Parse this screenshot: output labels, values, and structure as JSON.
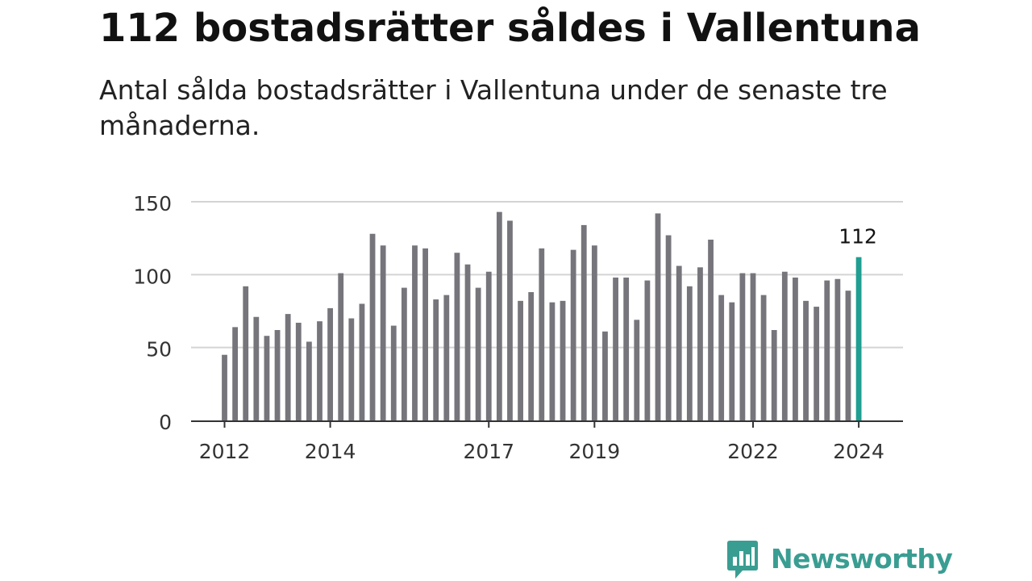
{
  "header": {
    "title": "112 bostadsrätter såldes i Vallentuna",
    "subtitle": "Antal sålda bostadsrätter i Vallentuna under de senaste tre månaderna."
  },
  "chart_data": {
    "type": "bar",
    "title": "112 bostadsrätter såldes i Vallentuna",
    "subtitle": "Antal sålda bostadsrätter i Vallentuna under de senaste tre månaderna.",
    "xlabel": "",
    "ylabel": "",
    "ylim": [
      0,
      150
    ],
    "yticks": [
      0,
      50,
      100,
      150
    ],
    "xtick_labels": [
      "2012",
      "2014",
      "2017",
      "2019",
      "2022",
      "2024"
    ],
    "xtick_positions": [
      0,
      10,
      25,
      35,
      50,
      60
    ],
    "grid": true,
    "bar_color": "#76757b",
    "highlight_color": "#1f9e91",
    "highlight_index": 60,
    "highlight_label": "112",
    "values": [
      45,
      64,
      92,
      71,
      58,
      62,
      73,
      67,
      54,
      68,
      77,
      101,
      70,
      80,
      128,
      120,
      65,
      91,
      120,
      118,
      83,
      86,
      115,
      107,
      91,
      102,
      143,
      137,
      82,
      88,
      118,
      81,
      82,
      117,
      134,
      120,
      61,
      98,
      98,
      69,
      96,
      142,
      127,
      106,
      92,
      105,
      124,
      86,
      81,
      101,
      101,
      86,
      62,
      102,
      98,
      82,
      78,
      96,
      97,
      89,
      112
    ]
  },
  "brand": {
    "name": "Newsworthy",
    "color": "#3a9d92",
    "icon": "newsworthy-chart-bubble-icon"
  }
}
